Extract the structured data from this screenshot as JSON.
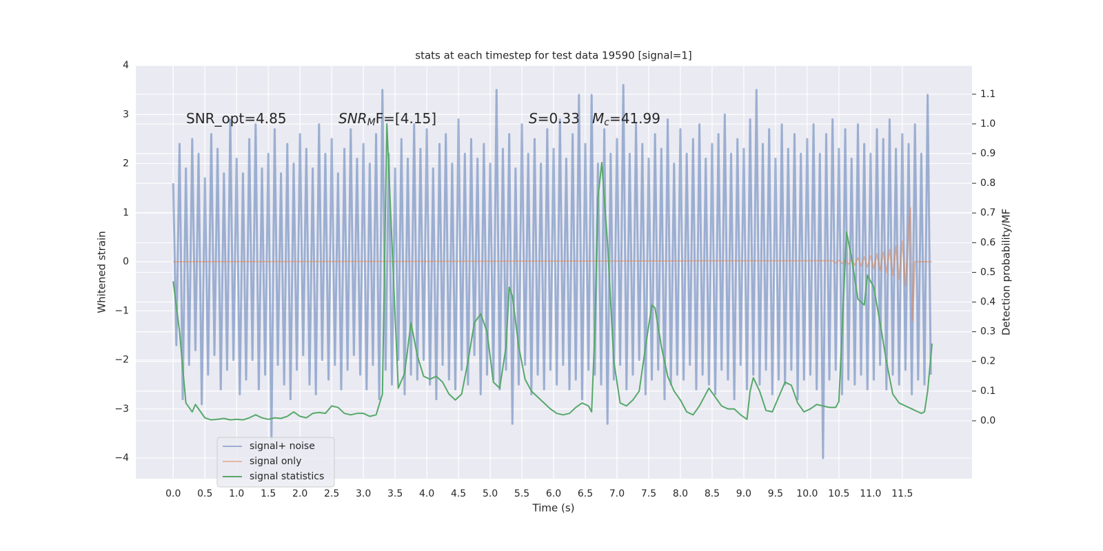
{
  "chart_data": {
    "type": "line",
    "title": "stats at each timestep for test data 19590 [signal=1]",
    "xlabel": "Time (s)",
    "ylabel": "Whitened strain",
    "y2label": "Detection probability/MF",
    "xlim": [
      -0.59,
      12.6
    ],
    "ylim": [
      -4.42,
      4.0
    ],
    "y2lim": [
      -0.195,
      1.197
    ],
    "xticks": [
      {
        "value": 0,
        "label": "0.0"
      },
      0.5,
      {
        "value": 1,
        "label": "1.0"
      },
      1.5,
      {
        "value": 2,
        "label": "2.0"
      },
      2.5,
      {
        "value": 3,
        "label": "3.0"
      },
      3.5,
      {
        "value": 4,
        "label": "4.0"
      },
      4.5,
      {
        "value": 5,
        "label": "5.0"
      },
      5.5,
      {
        "value": 6,
        "label": "6.0"
      },
      6.5,
      {
        "value": 7,
        "label": "7.0"
      },
      7.5,
      {
        "value": 8,
        "label": "8.0"
      },
      8.5,
      {
        "value": 9,
        "label": "9.0"
      },
      9.5,
      {
        "value": 10,
        "label": "10.0"
      },
      10.5,
      {
        "value": 11,
        "label": "11.0"
      },
      11.5
    ],
    "yticks": [
      {
        "value": -4,
        "label": "−4"
      },
      {
        "value": -3,
        "label": "−3"
      },
      {
        "value": -2,
        "label": "−2"
      },
      {
        "value": -1,
        "label": "−1"
      },
      0,
      1,
      2,
      3,
      4
    ],
    "y2ticks": [
      {
        "value": 0,
        "label": "0.0"
      },
      0.1,
      0.2,
      0.3,
      0.4,
      0.5,
      0.6,
      0.7,
      0.8,
      0.9,
      {
        "value": 1,
        "label": "1.0"
      },
      1.1
    ],
    "grid": true,
    "legend": "lower left",
    "annotations": [
      {
        "parts": [
          {
            "text": "SNR_opt=4.85"
          }
        ]
      },
      {
        "parts": [
          {
            "text": "SNR",
            "style": "italic"
          },
          {
            "text": "M",
            "style": "italic-sub"
          },
          {
            "text": "F=[4.15]",
            "style": "italic-first"
          }
        ]
      },
      {
        "parts": [
          {
            "text": "S",
            "style": "italic"
          },
          {
            "text": "=0.33"
          }
        ]
      },
      {
        "parts": [
          {
            "text": "M",
            "style": "italic"
          },
          {
            "text": "c",
            "style": "italic-sub"
          },
          {
            "text": "=41.99"
          }
        ]
      }
    ],
    "series": [
      {
        "name": "signal+ noise",
        "color": "#4c72b0",
        "opacity": 0.5,
        "x": [
          0,
          0.05,
          0.1,
          0.15,
          0.2,
          0.25,
          0.3,
          0.35,
          0.4,
          0.45,
          0.5,
          0.55,
          0.6,
          0.65,
          0.7,
          0.75,
          0.8,
          0.85,
          0.9,
          0.95,
          1,
          1.05,
          1.1,
          1.15,
          1.2,
          1.25,
          1.3,
          1.35,
          1.4,
          1.45,
          1.5,
          1.55,
          1.6,
          1.65,
          1.7,
          1.75,
          1.8,
          1.85,
          1.9,
          1.95,
          2,
          2.05,
          2.1,
          2.15,
          2.2,
          2.25,
          2.3,
          2.35,
          2.4,
          2.45,
          2.5,
          2.55,
          2.6,
          2.65,
          2.7,
          2.75,
          2.8,
          2.85,
          2.9,
          2.95,
          3,
          3.05,
          3.1,
          3.15,
          3.2,
          3.25,
          3.3,
          3.35,
          3.4,
          3.45,
          3.5,
          3.55,
          3.6,
          3.65,
          3.7,
          3.75,
          3.8,
          3.85,
          3.9,
          3.95,
          4,
          4.05,
          4.1,
          4.15,
          4.2,
          4.25,
          4.3,
          4.35,
          4.4,
          4.45,
          4.5,
          4.55,
          4.6,
          4.65,
          4.7,
          4.75,
          4.8,
          4.85,
          4.9,
          4.95,
          5,
          5.05,
          5.1,
          5.15,
          5.2,
          5.25,
          5.3,
          5.35,
          5.4,
          5.45,
          5.5,
          5.55,
          5.6,
          5.65,
          5.7,
          5.75,
          5.8,
          5.85,
          5.9,
          5.95,
          6,
          6.05,
          6.1,
          6.15,
          6.2,
          6.25,
          6.3,
          6.35,
          6.4,
          6.45,
          6.5,
          6.55,
          6.6,
          6.65,
          6.7,
          6.75,
          6.8,
          6.85,
          6.9,
          6.95,
          7,
          7.05,
          7.1,
          7.15,
          7.2,
          7.25,
          7.3,
          7.35,
          7.4,
          7.45,
          7.5,
          7.55,
          7.6,
          7.65,
          7.7,
          7.75,
          7.8,
          7.85,
          7.9,
          7.95,
          8,
          8.05,
          8.1,
          8.15,
          8.2,
          8.25,
          8.3,
          8.35,
          8.4,
          8.45,
          8.5,
          8.55,
          8.6,
          8.65,
          8.7,
          8.75,
          8.8,
          8.85,
          8.9,
          8.95,
          9,
          9.05,
          9.1,
          9.15,
          9.2,
          9.25,
          9.3,
          9.35,
          9.4,
          9.45,
          9.5,
          9.55,
          9.6,
          9.65,
          9.7,
          9.75,
          9.8,
          9.85,
          9.9,
          9.95,
          10,
          10.05,
          10.1,
          10.15,
          10.2,
          10.25,
          10.3,
          10.35,
          10.4,
          10.45,
          10.5,
          10.55,
          10.6,
          10.65,
          10.7,
          10.75,
          10.8,
          10.85,
          10.9,
          10.95,
          11,
          11.05,
          11.1,
          11.15,
          11.2,
          11.25,
          11.3,
          11.35,
          11.4,
          11.45,
          11.5,
          11.55,
          11.6,
          11.65,
          11.7,
          11.75,
          11.8,
          11.85,
          11.9,
          11.95
        ],
        "values": [
          1.6,
          -1.7,
          2.4,
          -2.8,
          1.9,
          -2.1,
          2.5,
          -1.8,
          2.2,
          -2.9,
          1.7,
          -2.3,
          2.6,
          -1.9,
          2.3,
          -2.6,
          1.8,
          -2.2,
          2.9,
          -2.0,
          2.1,
          -2.7,
          1.8,
          -2.4,
          2.5,
          -2.0,
          2.8,
          -2.6,
          1.9,
          -2.3,
          2.2,
          -3.6,
          2.7,
          -2.1,
          1.8,
          -2.5,
          2.4,
          -2.8,
          2.0,
          -2.2,
          2.6,
          -1.9,
          2.3,
          -2.5,
          1.9,
          -2.7,
          2.8,
          -2.0,
          2.2,
          -2.4,
          2.5,
          -2.1,
          1.8,
          -2.6,
          2.3,
          -2.2,
          2.7,
          -1.9,
          2.1,
          -2.3,
          2.4,
          -2.6,
          2.0,
          -2.1,
          2.6,
          -2.8,
          3.5,
          -2.2,
          2.2,
          -2.5,
          1.9,
          -2.0,
          2.5,
          -2.7,
          2.1,
          -2.3,
          2.8,
          -2.4,
          2.3,
          -2.0,
          2.7,
          -2.5,
          1.9,
          -2.8,
          2.4,
          -2.1,
          2.6,
          -2.4,
          2.0,
          -2.6,
          2.9,
          -2.2,
          2.2,
          -2.5,
          2.5,
          -1.9,
          2.1,
          -2.7,
          2.4,
          -2.3,
          2.0,
          -2.4,
          3.5,
          -2.6,
          2.3,
          -2.2,
          2.6,
          -3.3,
          1.9,
          -2.5,
          2.8,
          -2.1,
          2.2,
          -2.7,
          2.5,
          -2.3,
          2.0,
          -2.6,
          2.7,
          -2.2,
          2.3,
          -2.5,
          2.9,
          -2.1,
          2.1,
          -2.6,
          2.6,
          -2.4,
          3.4,
          -2.8,
          2.4,
          -2.2,
          3.4,
          -2.3,
          2.0,
          -2.5,
          2.7,
          -3.3,
          2.2,
          -2.4,
          2.5,
          -2.1,
          3.6,
          -2.6,
          2.2,
          -2.3,
          2.8,
          -2.0,
          2.4,
          -2.7,
          2.1,
          -2.4,
          2.6,
          -2.2,
          2.3,
          -2.8,
          2.9,
          -2.5,
          2.0,
          -2.3,
          2.7,
          -2.4,
          2.2,
          -2.1,
          2.5,
          -2.6,
          2.8,
          -2.3,
          2.1,
          -2.5,
          2.4,
          -2.7,
          2.6,
          -2.2,
          3.0,
          -2.4,
          2.2,
          -2.8,
          2.5,
          -2.1,
          2.3,
          -2.6,
          2.9,
          -2.3,
          3.5,
          -2.5,
          2.4,
          -2.2,
          2.7,
          -2.7,
          2.1,
          -2.4,
          2.8,
          -2.5,
          2.3,
          -2.2,
          2.6,
          -2.8,
          2.2,
          -2.4,
          2.5,
          -2.3,
          2.8,
          -2.6,
          2.2,
          -4.0,
          2.6,
          -2.4,
          2.9,
          -2.2,
          2.3,
          -2.7,
          2.7,
          -2.4,
          2.1,
          -2.5,
          2.8,
          -2.3,
          2.4,
          -2.6,
          2.2,
          -2.4,
          2.7,
          -2.1,
          2.5,
          -2.6,
          2.9,
          -2.3,
          2.3,
          -2.5,
          2.6,
          -2.2,
          2.4,
          -2.7,
          2.8,
          -2.4,
          2.2,
          -2.5,
          3.4,
          -2.3
        ]
      },
      {
        "name": "signal only",
        "color": "#dd8452",
        "opacity": 0.5,
        "x": [
          0,
          10.4,
          10.45,
          10.5,
          10.55,
          10.6,
          10.65,
          10.7,
          10.75,
          10.8,
          10.85,
          10.9,
          10.95,
          11,
          11.05,
          11.1,
          11.15,
          11.2,
          11.25,
          11.3,
          11.35,
          11.4,
          11.45,
          11.5,
          11.55,
          11.6,
          11.63,
          11.66,
          11.7,
          11.97
        ],
        "values": [
          0,
          0.02,
          -0.025,
          0.03,
          -0.035,
          0.04,
          -0.05,
          0.06,
          -0.07,
          0.08,
          -0.09,
          0.1,
          -0.11,
          0.12,
          -0.14,
          0.16,
          -0.18,
          0.2,
          -0.22,
          0.25,
          -0.28,
          0.32,
          -0.36,
          0.42,
          -0.5,
          0.6,
          1.1,
          -1.2,
          0,
          0
        ]
      },
      {
        "name": "signal statistics",
        "color": "#55a868",
        "axis": "y2",
        "x": [
          0,
          0.1,
          0.2,
          0.3,
          0.35,
          0.5,
          0.6,
          0.7,
          0.8,
          0.9,
          1,
          1.1,
          1.2,
          1.3,
          1.4,
          1.5,
          1.6,
          1.7,
          1.8,
          1.9,
          2,
          2.1,
          2.2,
          2.3,
          2.4,
          2.5,
          2.6,
          2.7,
          2.8,
          2.9,
          3,
          3.1,
          3.2,
          3.3,
          3.37,
          3.45,
          3.55,
          3.65,
          3.75,
          3.85,
          3.95,
          4.05,
          4.15,
          4.25,
          4.35,
          4.45,
          4.55,
          4.65,
          4.75,
          4.85,
          4.95,
          5.05,
          5.15,
          5.25,
          5.3,
          5.35,
          5.45,
          5.55,
          5.65,
          5.75,
          5.85,
          5.95,
          6.05,
          6.15,
          6.25,
          6.35,
          6.45,
          6.55,
          6.6,
          6.65,
          6.7,
          6.76,
          6.85,
          6.95,
          7.05,
          7.15,
          7.25,
          7.35,
          7.45,
          7.55,
          7.6,
          7.7,
          7.8,
          7.9,
          8,
          8.1,
          8.2,
          8.3,
          8.4,
          8.45,
          8.55,
          8.65,
          8.75,
          8.85,
          8.95,
          9.05,
          9.1,
          9.15,
          9.25,
          9.35,
          9.45,
          9.55,
          9.65,
          9.75,
          9.85,
          9.95,
          10.05,
          10.15,
          10.25,
          10.35,
          10.45,
          10.5,
          10.55,
          10.62,
          10.7,
          10.8,
          10.9,
          10.95,
          11.05,
          11.15,
          11.25,
          11.35,
          11.45,
          11.55,
          11.65,
          11.75,
          11.8,
          11.85,
          11.9,
          11.97
        ],
        "values": [
          0.47,
          0.3,
          0.06,
          0.03,
          0.055,
          0.01,
          0.003,
          0.005,
          0.008,
          0.003,
          0.005,
          0.003,
          0.01,
          0.02,
          0.01,
          0.005,
          0.01,
          0.008,
          0.015,
          0.03,
          0.015,
          0.01,
          0.025,
          0.028,
          0.025,
          0.05,
          0.045,
          0.025,
          0.02,
          0.025,
          0.025,
          0.015,
          0.02,
          0.09,
          1.0,
          0.6,
          0.11,
          0.16,
          0.33,
          0.22,
          0.15,
          0.14,
          0.15,
          0.13,
          0.09,
          0.07,
          0.09,
          0.2,
          0.33,
          0.36,
          0.3,
          0.13,
          0.11,
          0.25,
          0.45,
          0.42,
          0.25,
          0.14,
          0.1,
          0.08,
          0.06,
          0.04,
          0.025,
          0.02,
          0.025,
          0.045,
          0.06,
          0.05,
          0.03,
          0.3,
          0.75,
          0.87,
          0.6,
          0.2,
          0.06,
          0.05,
          0.07,
          0.1,
          0.25,
          0.39,
          0.38,
          0.25,
          0.15,
          0.1,
          0.07,
          0.03,
          0.02,
          0.05,
          0.09,
          0.11,
          0.08,
          0.05,
          0.04,
          0.04,
          0.02,
          0.005,
          0.1,
          0.145,
          0.1,
          0.035,
          0.03,
          0.08,
          0.13,
          0.12,
          0.06,
          0.03,
          0.04,
          0.055,
          0.05,
          0.045,
          0.045,
          0.065,
          0.3,
          0.636,
          0.55,
          0.41,
          0.39,
          0.49,
          0.45,
          0.33,
          0.2,
          0.09,
          0.06,
          0.05,
          0.04,
          0.03,
          0.025,
          0.03,
          0.1,
          0.26
        ]
      }
    ]
  }
}
